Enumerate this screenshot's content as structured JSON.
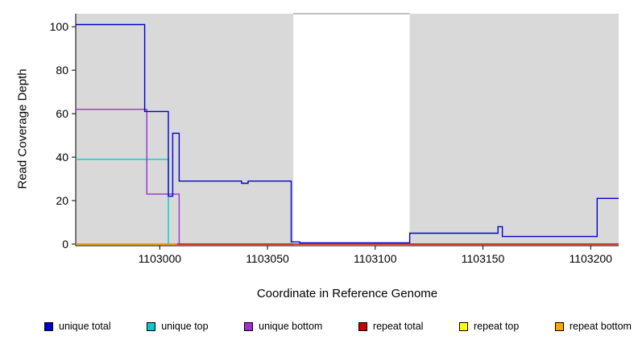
{
  "chart_data": {
    "type": "line",
    "title": "",
    "xlabel": "Coordinate in Reference Genome",
    "ylabel": "Read Coverage Depth",
    "xlim": [
      1102961,
      1103213
    ],
    "ylim": [
      0,
      106
    ],
    "xticks": [
      1103000,
      1103050,
      1103100,
      1103150,
      1103200
    ],
    "yticks": [
      0,
      20,
      40,
      60,
      80,
      100
    ],
    "grid": false,
    "legend_position": "bottom",
    "background_color": "#ffffff",
    "shaded_region_color": "#d9d9d9",
    "shaded_regions": [
      {
        "from": 1102961,
        "to": 1103062
      },
      {
        "from": 1103116,
        "to": 1103213
      }
    ],
    "series": [
      {
        "name": "repeat top",
        "color": "#ffff00",
        "points": [
          [
            1102961,
            0
          ],
          [
            1103213,
            0
          ]
        ]
      },
      {
        "name": "repeat total",
        "color": "#cc0000",
        "points": [
          [
            1102961,
            0
          ],
          [
            1103213,
            0
          ]
        ]
      },
      {
        "name": "repeat bottom",
        "color": "#ffa500",
        "points": [
          [
            1102961,
            0
          ],
          [
            1103008,
            0
          ]
        ]
      },
      {
        "name": "unique top",
        "color": "#00cccc",
        "points": [
          [
            1102961,
            39
          ],
          [
            1103004,
            39
          ],
          [
            1103004,
            0
          ]
        ]
      },
      {
        "name": "unique bottom",
        "color": "#9932cc",
        "points": [
          [
            1102961,
            62
          ],
          [
            1102994,
            62
          ],
          [
            1102994,
            23
          ],
          [
            1103009,
            23
          ],
          [
            1103009,
            0
          ]
        ]
      },
      {
        "name": "unique total",
        "color": "#0000cd",
        "points": [
          [
            1102961,
            101
          ],
          [
            1102993,
            101
          ],
          [
            1102993,
            61
          ],
          [
            1103004,
            61
          ],
          [
            1103004,
            22
          ],
          [
            1103006,
            22
          ],
          [
            1103006,
            51
          ],
          [
            1103009,
            51
          ],
          [
            1103009,
            29
          ],
          [
            1103038,
            29
          ],
          [
            1103038,
            28
          ],
          [
            1103041,
            28
          ],
          [
            1103041,
            29
          ],
          [
            1103061,
            29
          ],
          [
            1103061,
            1
          ],
          [
            1103065,
            1
          ],
          [
            1103065,
            0.6
          ],
          [
            1103116,
            0.6
          ],
          [
            1103116,
            5
          ],
          [
            1103157,
            5
          ],
          [
            1103157,
            8
          ],
          [
            1103159,
            8
          ],
          [
            1103159,
            3.5
          ],
          [
            1103203,
            3.5
          ],
          [
            1103203,
            21
          ],
          [
            1103213,
            21
          ]
        ]
      }
    ],
    "legend": [
      {
        "label": "unique total",
        "color": "#0000cd"
      },
      {
        "label": "unique top",
        "color": "#00cccc"
      },
      {
        "label": "unique bottom",
        "color": "#9932cc"
      },
      {
        "label": "repeat total",
        "color": "#cc0000"
      },
      {
        "label": "repeat top",
        "color": "#ffff00"
      },
      {
        "label": "repeat bottom",
        "color": "#ffa500"
      }
    ]
  }
}
